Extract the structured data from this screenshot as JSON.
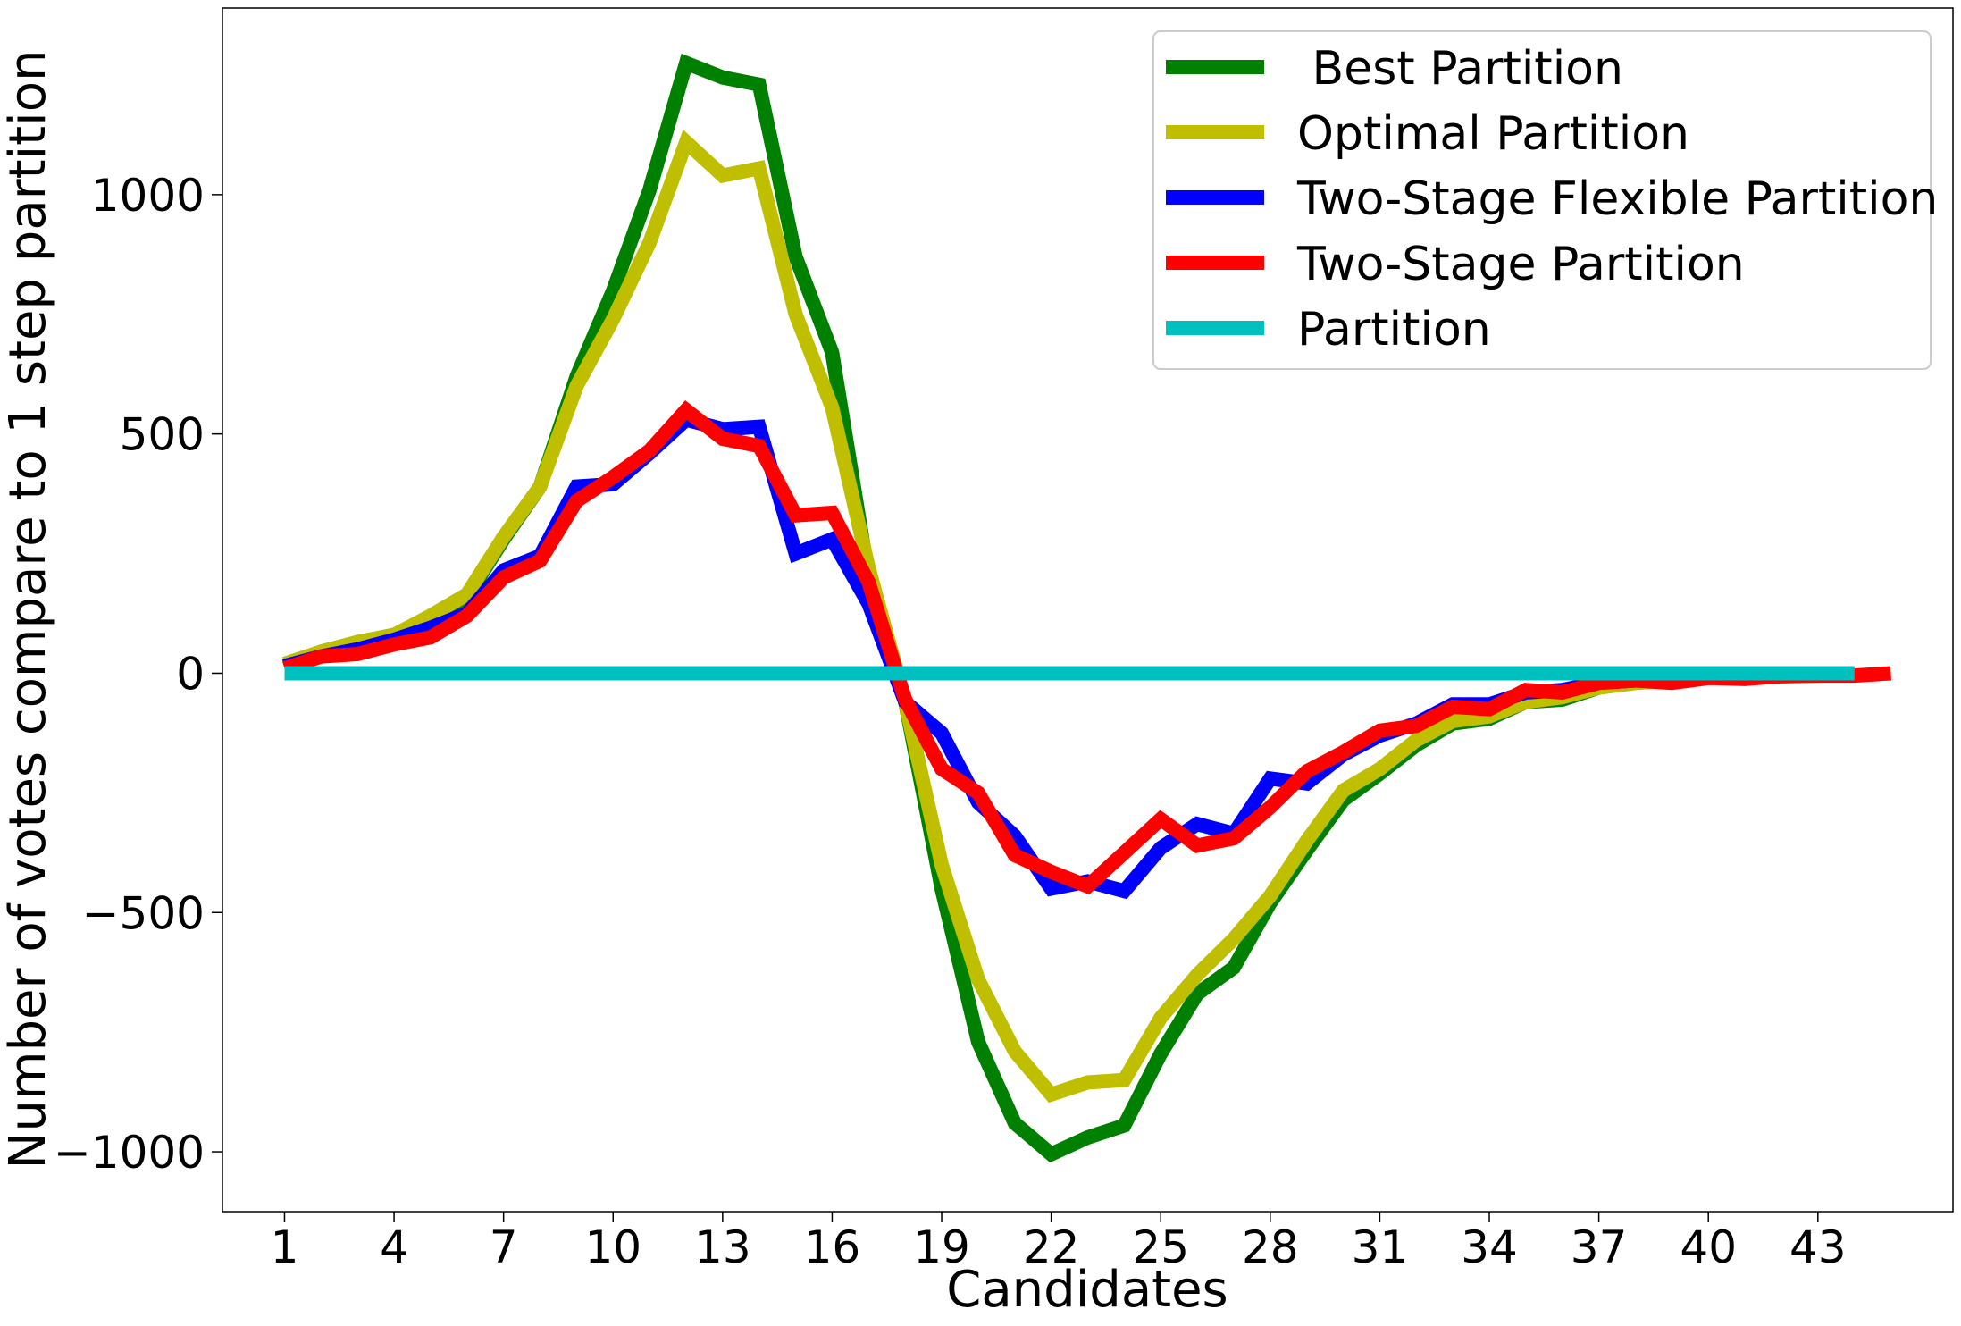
{
  "chart_data": {
    "type": "line",
    "title": "",
    "xlabel": "Candidates",
    "ylabel": "Number of votes compare to 1 step partition",
    "xlim": [
      -0.7,
      46.7
    ],
    "ylim": [
      -1125,
      1390
    ],
    "xticks": [
      1,
      4,
      7,
      10,
      13,
      16,
      19,
      22,
      25,
      28,
      31,
      34,
      37,
      40,
      43
    ],
    "yticks": [
      -1000,
      -500,
      0,
      500,
      1000
    ],
    "ytick_labels": [
      "−1000",
      "−500",
      "0",
      "500",
      "1000"
    ],
    "grid": false,
    "legend_position": "top-right",
    "series": [
      {
        "name": " Best Partition",
        "color": "#008000",
        "x": [
          1,
          2,
          3,
          4,
          5,
          6,
          7,
          8,
          9,
          10,
          11,
          12,
          13,
          14,
          15,
          16,
          17,
          18,
          19,
          20,
          21,
          22,
          23,
          24,
          25,
          26,
          27,
          28,
          29,
          30,
          31,
          32,
          33,
          34,
          35,
          36,
          37,
          38,
          39,
          40,
          41,
          42,
          43,
          44
        ],
        "y": [
          15,
          45,
          65,
          80,
          115,
          160,
          280,
          390,
          620,
          800,
          1010,
          1275,
          1245,
          1230,
          870,
          670,
          200,
          -60,
          -450,
          -770,
          -940,
          -1005,
          -970,
          -945,
          -795,
          -670,
          -615,
          -480,
          -370,
          -265,
          -210,
          -150,
          -105,
          -95,
          -60,
          -55,
          -30,
          -20,
          -15,
          -10,
          -8,
          -6,
          -5,
          -3
        ]
      },
      {
        "name": "Optimal Partition",
        "color": "#bfbf00",
        "x": [
          1,
          2,
          3,
          4,
          5,
          6,
          7,
          8,
          9,
          10,
          11,
          12,
          13,
          14,
          15,
          16,
          17,
          18,
          19,
          20,
          21,
          22,
          23,
          24,
          25,
          26,
          27,
          28,
          29,
          30,
          31,
          32,
          33,
          34,
          35,
          36,
          37,
          38,
          39,
          40,
          41,
          42,
          43,
          44
        ],
        "y": [
          20,
          45,
          65,
          80,
          120,
          165,
          285,
          390,
          600,
          740,
          900,
          1110,
          1040,
          1055,
          750,
          555,
          220,
          -60,
          -400,
          -640,
          -790,
          -880,
          -855,
          -850,
          -720,
          -630,
          -555,
          -465,
          -350,
          -245,
          -200,
          -140,
          -100,
          -90,
          -60,
          -50,
          -30,
          -20,
          -15,
          -10,
          -8,
          -6,
          -5,
          -3
        ]
      },
      {
        "name": "Two-Stage Flexible Partition",
        "color": "#0000ff",
        "x": [
          1,
          2,
          3,
          4,
          5,
          6,
          7,
          8,
          9,
          10,
          11,
          12,
          13,
          14,
          15,
          16,
          17,
          18,
          19,
          20,
          21,
          22,
          23,
          24,
          25,
          26,
          27,
          28,
          29,
          30,
          31,
          32,
          33,
          34,
          35,
          36,
          37,
          38,
          39,
          40,
          41,
          42,
          43,
          44
        ],
        "y": [
          15,
          35,
          50,
          70,
          95,
          125,
          215,
          245,
          390,
          395,
          460,
          530,
          510,
          515,
          250,
          280,
          145,
          -60,
          -125,
          -270,
          -340,
          -450,
          -435,
          -455,
          -365,
          -315,
          -335,
          -220,
          -230,
          -170,
          -130,
          -105,
          -65,
          -65,
          -40,
          -35,
          -20,
          -15,
          -12,
          -8,
          -6,
          -5,
          -4,
          -3
        ]
      },
      {
        "name": "Two-Stage Partition",
        "color": "#ff0000",
        "x": [
          1,
          2,
          3,
          4,
          5,
          6,
          7,
          8,
          9,
          10,
          11,
          12,
          13,
          14,
          15,
          16,
          17,
          18,
          19,
          20,
          21,
          22,
          23,
          24,
          25,
          26,
          27,
          28,
          29,
          30,
          31,
          32,
          33,
          34,
          35,
          36,
          37,
          38,
          39,
          40,
          41,
          42,
          43,
          44,
          45
        ],
        "y": [
          10,
          35,
          40,
          60,
          75,
          120,
          200,
          235,
          360,
          410,
          465,
          550,
          490,
          475,
          330,
          335,
          190,
          -55,
          -200,
          -250,
          -380,
          -415,
          -445,
          -375,
          -305,
          -360,
          -345,
          -280,
          -205,
          -165,
          -120,
          -110,
          -70,
          -75,
          -35,
          -40,
          -20,
          -15,
          -20,
          -10,
          -12,
          -6,
          -5,
          -5,
          0
        ]
      },
      {
        "name": "Partition",
        "color": "#00bfbf",
        "x": [
          1,
          44
        ],
        "y": [
          0,
          0
        ]
      }
    ]
  }
}
